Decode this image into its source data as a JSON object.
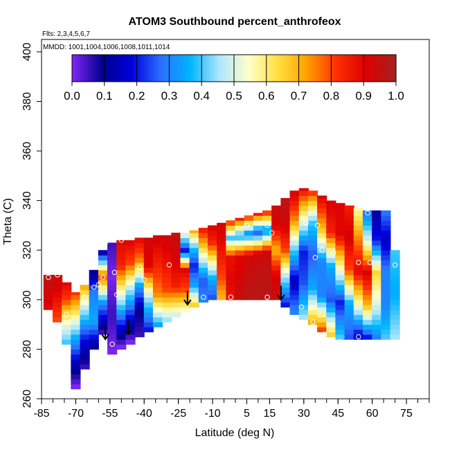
{
  "chart_data": {
    "type": "heatmap",
    "title": "ATOM3 Southbound percent_anthrofeox",
    "flights_note": "Flts: 2,3,4,5,6,7",
    "dates_note": "MMDD: 1001,1004,1006,1008,1011,1014",
    "xlabel": "Latitude (deg N)",
    "ylabel": "Theta (C)",
    "xlim": [
      -85,
      85
    ],
    "ylim": [
      260,
      405
    ],
    "xticks": [
      -85,
      -70,
      -55,
      -40,
      -25,
      -10,
      5,
      15,
      30,
      45,
      60,
      75
    ],
    "yticks": [
      260,
      280,
      300,
      320,
      340,
      360,
      380,
      400
    ],
    "colorbar": {
      "ticks": [
        "0.0",
        "0.1",
        "0.2",
        "0.3",
        "0.4",
        "0.5",
        "0.6",
        "0.7",
        "0.8",
        "0.9",
        "1.0"
      ],
      "colors": [
        "#7b25ee",
        "#00008e",
        "#0000dc",
        "#2a70ff",
        "#00b4ff",
        "#aee6ff",
        "#ffffcc",
        "#ffe040",
        "#ffa000",
        "#ff3000",
        "#dd0000",
        "#a82020"
      ]
    },
    "field_columns": [
      {
        "lat": -82,
        "bottom": 296,
        "top": 310,
        "values": [
          0.9,
          0.92,
          0.95,
          0.97
        ]
      },
      {
        "lat": -78,
        "bottom": 291,
        "top": 310,
        "values": [
          0.8,
          0.86,
          0.92,
          0.95
        ]
      },
      {
        "lat": -74,
        "bottom": 282,
        "top": 307,
        "values": [
          0.4,
          0.55,
          0.8,
          0.92
        ]
      },
      {
        "lat": -70,
        "bottom": 264,
        "top": 303,
        "values": [
          0.0,
          0.15,
          0.35,
          0.6,
          0.85
        ]
      },
      {
        "lat": -66,
        "bottom": 272,
        "top": 306,
        "values": [
          0.05,
          0.2,
          0.45,
          0.75
        ]
      },
      {
        "lat": -62,
        "bottom": 280,
        "top": 312,
        "values": [
          0.1,
          0.35,
          0.3,
          0.05
        ]
      },
      {
        "lat": -58,
        "bottom": 286,
        "top": 320,
        "values": [
          0.05,
          0.3,
          0.8,
          0.0
        ]
      },
      {
        "lat": -54,
        "bottom": 278,
        "top": 323,
        "values": [
          0.0,
          0.05,
          0.0,
          0.05
        ]
      },
      {
        "lat": -50,
        "bottom": 280,
        "top": 324,
        "values": [
          0.0,
          0.25,
          0.55,
          0.85,
          0.9
        ]
      },
      {
        "lat": -46,
        "bottom": 282,
        "top": 324,
        "values": [
          0.0,
          0.2,
          0.45,
          0.8,
          0.92
        ]
      },
      {
        "lat": -42,
        "bottom": 285,
        "top": 325,
        "values": [
          0.05,
          0.1,
          0.35,
          0.75,
          0.92
        ]
      },
      {
        "lat": -38,
        "bottom": 287,
        "top": 325,
        "values": [
          0.2,
          0.45,
          0.9,
          0.93
        ]
      },
      {
        "lat": -34,
        "bottom": 289,
        "top": 326,
        "values": [
          0.35,
          0.75,
          0.85,
          0.93
        ]
      },
      {
        "lat": -30,
        "bottom": 291,
        "top": 326,
        "values": [
          0.45,
          0.8,
          0.88,
          0.94
        ]
      },
      {
        "lat": -26,
        "bottom": 293,
        "top": 327,
        "values": [
          0.5,
          0.85,
          0.92,
          0.95
        ]
      },
      {
        "lat": -22,
        "bottom": 295,
        "top": 327,
        "values": [
          0.55,
          0.8,
          0.9,
          0.2,
          0.6
        ]
      },
      {
        "lat": -18,
        "bottom": 297,
        "top": 328,
        "values": [
          0.65,
          0.35,
          0.2,
          0.4,
          0.75
        ]
      },
      {
        "lat": -14,
        "bottom": 299,
        "top": 329,
        "values": [
          0.3,
          0.25,
          0.45,
          0.7,
          0.9
        ]
      },
      {
        "lat": -10,
        "bottom": 300,
        "top": 330,
        "values": [
          0.25,
          0.35,
          0.6,
          0.85,
          0.92
        ]
      },
      {
        "lat": -6,
        "bottom": 300,
        "top": 331,
        "values": [
          0.7,
          0.8,
          0.85,
          0.9,
          0.93
        ]
      },
      {
        "lat": -2,
        "bottom": 300,
        "top": 332,
        "values": [
          0.88,
          0.9,
          0.88,
          0.4,
          0.92
        ]
      },
      {
        "lat": 2,
        "bottom": 300,
        "top": 333,
        "values": [
          0.95,
          0.92,
          0.9,
          0.35,
          0.92
        ]
      },
      {
        "lat": 6,
        "bottom": 300,
        "top": 334,
        "values": [
          0.97,
          0.95,
          0.92,
          0.3,
          0.93
        ]
      },
      {
        "lat": 10,
        "bottom": 300,
        "top": 335,
        "values": [
          0.97,
          0.96,
          0.93,
          0.25,
          0.94
        ]
      },
      {
        "lat": 14,
        "bottom": 300,
        "top": 336,
        "values": [
          0.97,
          0.96,
          0.94,
          0.3,
          0.95
        ]
      },
      {
        "lat": 18,
        "bottom": 300,
        "top": 338,
        "values": [
          0.95,
          0.9,
          0.7,
          0.9,
          0.96
        ]
      },
      {
        "lat": 22,
        "bottom": 297,
        "top": 341,
        "values": [
          0.2,
          0.45,
          0.8,
          0.93,
          0.97
        ]
      },
      {
        "lat": 26,
        "bottom": 294,
        "top": 344,
        "values": [
          0.3,
          0.15,
          0.4,
          0.75,
          0.95
        ]
      },
      {
        "lat": 30,
        "bottom": 292,
        "top": 345,
        "values": [
          0.45,
          0.25,
          0.2,
          0.55,
          0.92
        ]
      },
      {
        "lat": 34,
        "bottom": 290,
        "top": 344,
        "values": [
          0.7,
          0.35,
          0.25,
          0.4,
          0.88
        ]
      },
      {
        "lat": 38,
        "bottom": 287,
        "top": 342,
        "values": [
          0.8,
          0.3,
          0.3,
          0.7,
          0.93
        ]
      },
      {
        "lat": 42,
        "bottom": 285,
        "top": 340,
        "values": [
          0.65,
          0.25,
          0.35,
          0.85,
          0.92
        ]
      },
      {
        "lat": 46,
        "bottom": 284,
        "top": 339,
        "values": [
          0.4,
          0.2,
          0.55,
          0.9,
          0.9
        ]
      },
      {
        "lat": 50,
        "bottom": 284,
        "top": 338,
        "values": [
          0.25,
          0.35,
          0.8,
          0.92,
          0.85
        ]
      },
      {
        "lat": 54,
        "bottom": 284,
        "top": 337,
        "values": [
          0.15,
          0.55,
          0.9,
          0.75,
          0.55
        ]
      },
      {
        "lat": 58,
        "bottom": 284,
        "top": 336,
        "values": [
          0.2,
          0.7,
          0.92,
          0.5,
          0.25
        ]
      },
      {
        "lat": 62,
        "bottom": 284,
        "top": 336,
        "values": [
          0.3,
          0.5,
          0.65,
          0.2,
          0.1
        ]
      },
      {
        "lat": 66,
        "bottom": 284,
        "top": 336,
        "values": [
          0.4,
          0.3,
          0.3,
          0.15,
          0.3
        ]
      },
      {
        "lat": 70,
        "bottom": 284,
        "top": 320,
        "values": [
          0.45,
          0.35,
          0.4
        ]
      }
    ],
    "sample_points": [
      {
        "lat": -82,
        "theta": 309
      },
      {
        "lat": -78,
        "theta": 310
      },
      {
        "lat": -74,
        "theta": 294
      },
      {
        "lat": -66,
        "theta": 301
      },
      {
        "lat": -64,
        "theta": 313
      },
      {
        "lat": -62,
        "theta": 305
      },
      {
        "lat": -60,
        "theta": 306
      },
      {
        "lat": -58,
        "theta": 309
      },
      {
        "lat": -58,
        "theta": 281
      },
      {
        "lat": -57,
        "theta": 323
      },
      {
        "lat": -54,
        "theta": 282
      },
      {
        "lat": -53,
        "theta": 311
      },
      {
        "lat": -52,
        "theta": 302
      },
      {
        "lat": -50,
        "theta": 324
      },
      {
        "lat": -45,
        "theta": 308
      },
      {
        "lat": -42,
        "theta": 313
      },
      {
        "lat": -40,
        "theta": 308
      },
      {
        "lat": -29,
        "theta": 314
      },
      {
        "lat": -14,
        "theta": 301
      },
      {
        "lat": -2,
        "theta": 301
      },
      {
        "lat": -9,
        "theta": 334
      },
      {
        "lat": 5,
        "theta": 330
      },
      {
        "lat": 14,
        "theta": 330
      },
      {
        "lat": 16,
        "theta": 327
      },
      {
        "lat": 14,
        "theta": 301
      },
      {
        "lat": 22,
        "theta": 346
      },
      {
        "lat": 29,
        "theta": 297
      },
      {
        "lat": 31,
        "theta": 331
      },
      {
        "lat": 34,
        "theta": 291
      },
      {
        "lat": 35,
        "theta": 317
      },
      {
        "lat": 36,
        "theta": 330
      },
      {
        "lat": 38,
        "theta": 320
      },
      {
        "lat": 39,
        "theta": 286
      },
      {
        "lat": 43,
        "theta": 319
      },
      {
        "lat": 46,
        "theta": 283
      },
      {
        "lat": 54,
        "theta": 315
      },
      {
        "lat": 54,
        "theta": 285
      },
      {
        "lat": 59,
        "theta": 315
      },
      {
        "lat": 58,
        "theta": 335
      },
      {
        "lat": 65,
        "theta": 337
      },
      {
        "lat": 70,
        "theta": 314
      }
    ],
    "flight_markers": [
      {
        "lat": -57,
        "theta": 284
      },
      {
        "lat": -47,
        "theta": 286
      },
      {
        "lat": -21,
        "theta": 298
      },
      {
        "lat": 20,
        "theta": 300
      }
    ]
  }
}
